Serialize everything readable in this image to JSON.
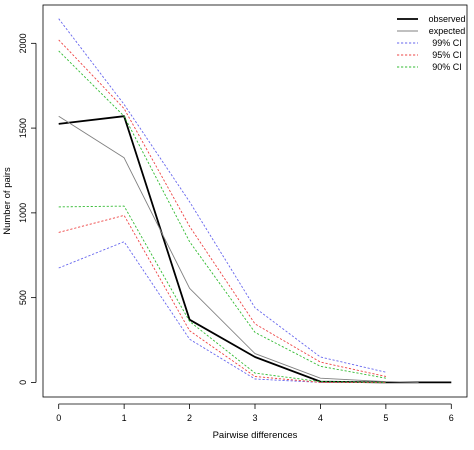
{
  "chart_data": {
    "type": "line",
    "title": "",
    "xlabel": "Pairwise differences",
    "ylabel": "Number of pairs",
    "x_ticks": [
      0,
      1,
      2,
      3,
      4,
      5,
      6
    ],
    "y_ticks": [
      0,
      500,
      1000,
      1500,
      2000
    ],
    "xlim": [
      -0.24,
      6.24
    ],
    "ylim": [
      -86,
      2226
    ],
    "grid": false,
    "legend_position": "top-right",
    "series": [
      {
        "name": "observed",
        "color": "#000000",
        "dash": "solid",
        "width": "thick",
        "points": [
          [
            0,
            1525
          ],
          [
            1,
            1570
          ],
          [
            2,
            370
          ],
          [
            3,
            150
          ],
          [
            4,
            5
          ],
          [
            5,
            0
          ],
          [
            6,
            0
          ]
        ]
      },
      {
        "name": "expected",
        "color": "#808080",
        "dash": "solid",
        "width": "thin",
        "points": [
          [
            0,
            1570
          ],
          [
            1,
            1325
          ],
          [
            2,
            555
          ],
          [
            3,
            170
          ],
          [
            4,
            25
          ],
          [
            5,
            5
          ],
          [
            5.5,
            0
          ]
        ]
      },
      {
        "name": "99% CI",
        "color": "#6666ee",
        "dash": "dotted",
        "width": "thin",
        "points": [
          [
            0,
            2145
          ],
          [
            1,
            1640
          ],
          [
            2,
            1065
          ],
          [
            3,
            440
          ],
          [
            4,
            150
          ],
          [
            5,
            60
          ]
        ]
      },
      {
        "name": "99% CI",
        "color": "#6666ee",
        "dash": "dotted",
        "width": "thin",
        "legend": false,
        "points": [
          [
            0,
            675
          ],
          [
            1,
            830
          ],
          [
            2,
            255
          ],
          [
            3,
            20
          ],
          [
            4,
            0
          ],
          [
            5,
            0
          ]
        ]
      },
      {
        "name": "95% CI",
        "color": "#ee4444",
        "dash": "dotted",
        "width": "thin",
        "points": [
          [
            0,
            2020
          ],
          [
            1,
            1615
          ],
          [
            2,
            920
          ],
          [
            3,
            345
          ],
          [
            4,
            120
          ],
          [
            5,
            35
          ]
        ]
      },
      {
        "name": "95% CI",
        "color": "#ee4444",
        "dash": "dotted",
        "width": "thin",
        "legend": false,
        "points": [
          [
            0,
            885
          ],
          [
            1,
            985
          ],
          [
            2,
            305
          ],
          [
            3,
            35
          ],
          [
            4,
            0
          ],
          [
            5,
            0
          ]
        ]
      },
      {
        "name": "90% CI",
        "color": "#33bb33",
        "dash": "dotted",
        "width": "thin",
        "points": [
          [
            0,
            1955
          ],
          [
            1,
            1570
          ],
          [
            2,
            830
          ],
          [
            3,
            295
          ],
          [
            4,
            95
          ],
          [
            5,
            25
          ]
        ]
      },
      {
        "name": "90% CI",
        "color": "#33bb33",
        "dash": "dotted",
        "width": "thin",
        "legend": false,
        "points": [
          [
            0,
            1035
          ],
          [
            1,
            1040
          ],
          [
            2,
            360
          ],
          [
            3,
            55
          ],
          [
            4,
            5
          ],
          [
            5,
            0
          ]
        ]
      }
    ]
  }
}
